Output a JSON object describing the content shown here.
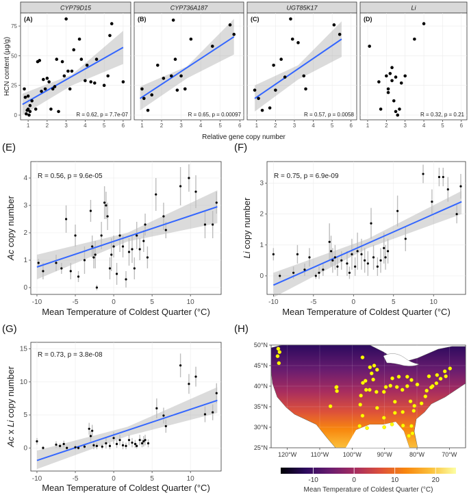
{
  "figure": {
    "top_row": {
      "ylabel": "HCN content (µg/g)",
      "xlabel": "Relative gene copy number"
    },
    "bottom_xlabel": "Mean Temperature of Coldest Quarter (°C)",
    "map_colorbar_label": "Mean Temperature of Coldest Quarter (°C)"
  },
  "chart_data": [
    {
      "id": "A",
      "tag": "(A)",
      "strip": "CYP79D15",
      "type": "scatter",
      "xlabel": "Relative gene copy number",
      "ylabel": "HCN content (µg/g)",
      "xlim": [
        0.6,
        6.4
      ],
      "ylim": [
        -4,
        86
      ],
      "xticks": [
        1,
        2,
        3,
        4,
        5,
        6
      ],
      "yticks": [
        0,
        25,
        50,
        75
      ],
      "x": [
        0.8,
        0.85,
        0.9,
        0.95,
        1.0,
        1.0,
        1.05,
        1.1,
        1.1,
        1.2,
        1.4,
        1.5,
        1.6,
        1.7,
        1.8,
        1.9,
        2.0,
        2.1,
        2.2,
        2.3,
        2.4,
        2.5,
        2.6,
        2.8,
        2.9,
        3.0,
        3.1,
        3.2,
        3.3,
        3.4,
        3.7,
        3.8,
        4.0,
        4.1,
        4.3,
        4.5,
        4.6,
        5.0,
        5.2,
        5.3,
        5.4,
        6.0
      ],
      "y": [
        22,
        15,
        1,
        4,
        16,
        5,
        0,
        3,
        8,
        12,
        5,
        45,
        46,
        20,
        30,
        22,
        31,
        28,
        5,
        22,
        24,
        47,
        3,
        45,
        33,
        81,
        37,
        22,
        37,
        55,
        64,
        47,
        29,
        42,
        28,
        27,
        47,
        25,
        33,
        67,
        77,
        28
      ],
      "fit": {
        "x": [
          0.7,
          6.0
        ],
        "y": [
          9,
          57
        ]
      },
      "band": {
        "x": [
          0.7,
          3.3,
          6.0
        ],
        "lower": [
          0,
          25,
          43
        ],
        "upper": [
          18,
          34,
          71
        ]
      },
      "annotation": "R = 0.62, p = 7.7e-07"
    },
    {
      "id": "B",
      "tag": "(B)",
      "strip": "CYP736A187",
      "type": "scatter",
      "xlim": [
        0.6,
        6.2
      ],
      "ylim": [
        -4,
        86
      ],
      "xticks": [
        1,
        2,
        3,
        4,
        5,
        6
      ],
      "yticks": [
        0,
        25,
        50,
        75
      ],
      "x": [
        1.0,
        1.1,
        1.3,
        1.5,
        1.8,
        2.1,
        2.5,
        2.6,
        2.7,
        2.8,
        3.0,
        3.2,
        3.2,
        3.5,
        4.6,
        5.5,
        5.7
      ],
      "y": [
        22,
        14,
        4,
        17,
        42,
        31,
        33,
        80,
        47,
        21,
        33,
        22,
        22,
        64,
        58,
        76,
        68
      ],
      "fit": {
        "x": [
          0.9,
          5.7
        ],
        "y": [
          14,
          66
        ]
      },
      "band": {
        "x": [
          0.9,
          3.3,
          5.7
        ],
        "lower": [
          4,
          31,
          51
        ],
        "upper": [
          24,
          41,
          81
        ]
      },
      "annotation": "R = 0.65, p = 0.00097"
    },
    {
      "id": "C",
      "tag": "(C)",
      "strip": "UGT85K17",
      "type": "scatter",
      "xlim": [
        0.5,
        6.3
      ],
      "ylim": [
        -4,
        86
      ],
      "xticks": [
        1,
        2,
        3,
        4,
        5,
        6
      ],
      "yticks": [
        0,
        25,
        50,
        75
      ],
      "x": [
        0.9,
        1.1,
        1.3,
        1.7,
        1.9,
        2.0,
        2.3,
        2.5,
        2.8,
        2.9,
        3.2,
        3.5,
        3.6,
        5.1,
        5.4
      ],
      "y": [
        21,
        14,
        4,
        6,
        42,
        21,
        47,
        32,
        81,
        64,
        61,
        33,
        22,
        76,
        68
      ],
      "fit": {
        "x": [
          0.9,
          5.5
        ],
        "y": [
          14,
          64
        ]
      },
      "band": {
        "x": [
          0.9,
          3.2,
          5.5
        ],
        "lower": [
          3,
          30,
          49
        ],
        "upper": [
          25,
          42,
          79
        ]
      },
      "annotation": "R = 0.57, p = 0.0058"
    },
    {
      "id": "D",
      "tag": "(D)",
      "strip": "Li",
      "type": "scatter",
      "xlim": [
        0.6,
        6.3
      ],
      "ylim": [
        -4,
        86
      ],
      "xticks": [
        1,
        2,
        3,
        4,
        5,
        6
      ],
      "yticks": [
        0,
        25,
        50,
        75
      ],
      "x": [
        1.1,
        1.6,
        1.7,
        2.0,
        2.1,
        2.1,
        2.2,
        2.3,
        2.3,
        2.4,
        2.5,
        2.5,
        2.6,
        2.7,
        2.8,
        3.0,
        3.5,
        4.0
      ],
      "y": [
        58,
        28,
        5,
        33,
        22,
        19,
        35,
        40,
        29,
        12,
        32,
        3,
        0,
        5,
        27,
        33,
        64,
        77
      ],
      "annotation": "R = 0.32, p = 0.21"
    },
    {
      "id": "E",
      "tag": "(E)",
      "type": "scatter",
      "ylabel_italic": "Ac",
      "ylabel_rest": " copy number",
      "xlabel": "Mean Temperature of Coldest Quarter (°C)",
      "xlim": [
        -10.8,
        14
      ],
      "ylim": [
        -0.25,
        4.6
      ],
      "xticks": [
        -10,
        -5,
        0,
        5,
        10
      ],
      "yticks": [
        0,
        1,
        2,
        3,
        4
      ],
      "x": [
        -9.8,
        -9.2,
        -7.5,
        -6.8,
        -6.2,
        -5.6,
        -5.0,
        -4.6,
        -3.8,
        -3.0,
        -2.8,
        -2.6,
        -2.4,
        -2.2,
        -1.6,
        -1.2,
        -1.0,
        -0.8,
        -0.5,
        -0.3,
        0.0,
        0.4,
        0.8,
        1.2,
        1.6,
        2.0,
        2.4,
        2.7,
        3.0,
        3.4,
        3.9,
        4.1,
        4.4,
        5.5,
        6.5,
        6.8,
        8.7,
        9.8,
        10.7,
        11.9,
        12.9,
        13.4
      ],
      "y": [
        0.9,
        0.6,
        0.9,
        0.7,
        2.5,
        0.6,
        1.9,
        0.4,
        1.0,
        2.8,
        1.5,
        1.1,
        1.2,
        0.0,
        1.9,
        3.1,
        3.0,
        2.6,
        0.7,
        1.2,
        1.5,
        0.5,
        1.9,
        1.5,
        0.3,
        1.3,
        1.4,
        0.7,
        1.9,
        1.4,
        1.7,
        2.3,
        1.1,
        3.4,
        2.6,
        2.1,
        3.7,
        4.0,
        3.5,
        2.3,
        2.3,
        3.1
      ],
      "err": [
        0.15,
        0.3,
        0.3,
        0.2,
        0.5,
        0.3,
        0.4,
        0.2,
        0.5,
        0.4,
        0.4,
        0.4,
        0.5,
        0.1,
        0.5,
        0.6,
        0.5,
        0.5,
        0.4,
        0.6,
        0.4,
        0.4,
        0.6,
        0.4,
        0.3,
        0.5,
        0.5,
        0.4,
        0.5,
        0.4,
        0.4,
        0.4,
        0.4,
        0.6,
        0.5,
        0.3,
        0.7,
        0.5,
        0.6,
        0.5,
        0.5,
        0.4
      ],
      "fit": {
        "x": [
          -10,
          13.5
        ],
        "y": [
          0.75,
          2.95
        ]
      },
      "band": {
        "x": [
          -10,
          1.8,
          13.5
        ],
        "lower": [
          0.3,
          1.68,
          2.35
        ],
        "upper": [
          1.2,
          2.0,
          3.55
        ]
      },
      "annotation": "R = 0.56, p = 9.6e-05"
    },
    {
      "id": "F",
      "tag": "(F)",
      "type": "scatter",
      "ylabel_italic": "Li",
      "ylabel_rest": " copy number",
      "xlabel": "Mean Temperature of Coldest Quarter (°C)",
      "xlim": [
        -10.8,
        14
      ],
      "ylim": [
        -0.6,
        3.7
      ],
      "xticks": [
        -10,
        -5,
        0,
        5,
        10
      ],
      "yticks": [
        0,
        1,
        2,
        3
      ],
      "x": [
        -10.0,
        -9.2,
        -7.5,
        -7.0,
        -6.1,
        -5.5,
        -4.7,
        -4.3,
        -3.8,
        -3.0,
        -2.8,
        -2.6,
        -2.3,
        -2.0,
        -1.5,
        -0.8,
        -0.5,
        -0.2,
        0.2,
        0.5,
        1.0,
        1.4,
        1.8,
        2.2,
        2.5,
        3.0,
        3.4,
        3.8,
        4.0,
        4.3,
        5.5,
        6.5,
        8.7,
        9.8,
        10.7,
        11.2,
        11.8,
        12.9,
        13.4
      ],
      "y": [
        0.7,
        0.0,
        0.1,
        0.7,
        0.2,
        0.6,
        0.0,
        0.1,
        0.2,
        1.1,
        0.8,
        0.5,
        0.6,
        0.3,
        0.5,
        0.4,
        0.1,
        0.7,
        0.3,
        0.8,
        0.7,
        0.5,
        0.4,
        1.7,
        0.6,
        0.3,
        0.5,
        0.9,
        0.6,
        0.8,
        2.1,
        1.2,
        3.3,
        2.4,
        3.2,
        3.2,
        2.8,
        2.0,
        2.9
      ],
      "err": [
        0.2,
        0.1,
        0.2,
        0.3,
        0.2,
        0.3,
        0.1,
        0.2,
        0.2,
        0.6,
        0.5,
        0.4,
        0.4,
        0.3,
        0.3,
        0.4,
        0.2,
        0.5,
        0.3,
        0.6,
        0.5,
        0.4,
        0.4,
        0.5,
        0.4,
        0.3,
        0.4,
        0.5,
        0.4,
        0.4,
        0.5,
        0.4,
        0.3,
        0.4,
        0.3,
        0.3,
        0.4,
        0.3,
        0.4
      ],
      "fit": {
        "x": [
          -10,
          13.5
        ],
        "y": [
          -0.3,
          2.4
        ]
      },
      "band": {
        "x": [
          -10,
          1.8,
          13.5
        ],
        "lower": [
          -0.7,
          0.9,
          2.0
        ],
        "upper": [
          0.1,
          1.2,
          2.75
        ]
      },
      "annotation": "R = 0.75, p = 6.9e-09"
    },
    {
      "id": "G",
      "tag": "(G)",
      "type": "scatter",
      "ylabel_italic": "Ac",
      "ylabel_mid": " x ",
      "ylabel_italic2": "Li",
      "ylabel_rest": " copy number",
      "xlabel": "Mean Temperature of Coldest Quarter (°C)",
      "xlim": [
        -10.8,
        14
      ],
      "ylim": [
        -3.5,
        16
      ],
      "xticks": [
        -10,
        -5,
        0,
        5,
        10
      ],
      "yticks": [
        0,
        5,
        10,
        15
      ],
      "x": [
        -10.0,
        -9.2,
        -7.5,
        -7.0,
        -6.5,
        -6.1,
        -5.0,
        -4.6,
        -3.8,
        -3.2,
        -3.0,
        -2.8,
        -2.6,
        -2.2,
        -1.5,
        -1.0,
        -0.5,
        0.0,
        0.4,
        0.8,
        1.2,
        1.6,
        2.0,
        2.4,
        2.8,
        3.0,
        3.4,
        3.7,
        3.9,
        4.1,
        4.5,
        5.6,
        6.5,
        6.8,
        8.7,
        9.8,
        10.7,
        11.9,
        12.9,
        13.4
      ],
      "y": [
        1.0,
        0.0,
        0.5,
        0.3,
        0.6,
        0.0,
        0.1,
        0.0,
        0.2,
        2.9,
        1.8,
        2.6,
        0.4,
        0.3,
        0.2,
        0.7,
        0.3,
        1.5,
        0.6,
        1.2,
        0.4,
        0.3,
        1.2,
        0.8,
        0.6,
        0.3,
        1.2,
        0.7,
        1.0,
        1.2,
        0.7,
        6.0,
        4.9,
        3.3,
        12.5,
        9.7,
        10.8,
        5.1,
        5.4,
        8.3
      ],
      "err": [
        0.5,
        0.3,
        0.5,
        0.4,
        0.5,
        0.3,
        0.4,
        0.3,
        0.4,
        0.9,
        0.8,
        0.9,
        0.6,
        0.5,
        0.4,
        0.8,
        0.5,
        0.9,
        0.6,
        0.8,
        0.6,
        0.5,
        0.8,
        0.7,
        0.6,
        0.4,
        0.8,
        0.6,
        0.8,
        0.8,
        0.6,
        1.5,
        1.2,
        1.0,
        1.8,
        1.5,
        1.5,
        1.2,
        1.2,
        1.5
      ],
      "fit": {
        "x": [
          -10,
          13.5
        ],
        "y": [
          -1.9,
          7.2
        ]
      },
      "band": {
        "x": [
          -10,
          1.8,
          13.5
        ],
        "lower": [
          -3.2,
          1.8,
          5.3
        ],
        "upper": [
          -0.4,
          3.2,
          9.2
        ]
      },
      "annotation": "R = 0.73, p = 3.8e-08"
    },
    {
      "id": "H",
      "tag": "(H)",
      "type": "map",
      "lon_range": [
        -125,
        -65
      ],
      "lat_range": [
        25,
        50
      ],
      "xticks": [
        "120°W",
        "110°W",
        "100°W",
        "90°W",
        "80°W",
        "70°W"
      ],
      "xtick_lons": [
        -120,
        -110,
        -100,
        -90,
        -80,
        -70
      ],
      "yticks": [
        "25°N",
        "30°N",
        "35°N",
        "40°N",
        "45°N",
        "50°N"
      ],
      "ytick_lats": [
        25,
        30,
        35,
        40,
        45,
        50
      ],
      "colorbar": {
        "ticks": [
          "-10",
          "0",
          "10",
          "20"
        ],
        "tick_values": [
          -10,
          0,
          10,
          20
        ],
        "range": [
          -18,
          25
        ],
        "colors": [
          "#000004",
          "#2c0a5e",
          "#6b1d6f",
          "#a72d5f",
          "#dd513a",
          "#f8870e",
          "#fbc03b",
          "#fcffa4"
        ],
        "label": "Mean Temperature of Coldest Quarter (°C)"
      },
      "sites": [
        [
          -122.8,
          49.1
        ],
        [
          -122.4,
          48.3
        ],
        [
          -123.0,
          47.3
        ],
        [
          -122.6,
          45.6
        ],
        [
          -106.7,
          35.1
        ],
        [
          -104.9,
          39.7
        ],
        [
          -104.7,
          38.8
        ],
        [
          -104.8,
          39.8
        ],
        [
          -96.8,
          47.0
        ],
        [
          -94.5,
          44.6
        ],
        [
          -94.0,
          43.1
        ],
        [
          -93.2,
          45.0
        ],
        [
          -92.3,
          44.0
        ],
        [
          -93.5,
          41.6
        ],
        [
          -96.7,
          40.8
        ],
        [
          -95.9,
          41.3
        ],
        [
          -97.3,
          37.7
        ],
        [
          -95.7,
          39.1
        ],
        [
          -94.6,
          39.1
        ],
        [
          -92.5,
          38.6
        ],
        [
          -90.2,
          38.6
        ],
        [
          -89.6,
          39.8
        ],
        [
          -88.2,
          40.1
        ],
        [
          -87.6,
          41.9
        ],
        [
          -86.2,
          39.8
        ],
        [
          -85.6,
          42.3
        ],
        [
          -83.0,
          42.3
        ],
        [
          -84.5,
          39.1
        ],
        [
          -83.0,
          40.0
        ],
        [
          -81.7,
          41.5
        ],
        [
          -79.9,
          40.4
        ],
        [
          -77.0,
          38.9
        ],
        [
          -75.2,
          40.0
        ],
        [
          -74.0,
          40.7
        ],
        [
          -73.8,
          42.7
        ],
        [
          -72.7,
          41.8
        ],
        [
          -71.1,
          42.4
        ],
        [
          -71.4,
          43.6
        ],
        [
          -69.8,
          44.3
        ],
        [
          -76.3,
          42.4
        ],
        [
          -78.6,
          35.8
        ],
        [
          -80.8,
          35.2
        ],
        [
          -81.0,
          34.0
        ],
        [
          -84.4,
          33.7
        ],
        [
          -86.8,
          36.2
        ],
        [
          -86.8,
          33.5
        ],
        [
          -90.2,
          32.3
        ],
        [
          -92.3,
          34.7
        ],
        [
          -97.5,
          35.5
        ],
        [
          -97.7,
          30.3
        ],
        [
          -96.8,
          32.8
        ],
        [
          -95.4,
          29.8
        ],
        [
          -90.1,
          30.0
        ],
        [
          -87.7,
          30.7
        ],
        [
          -84.3,
          30.4
        ],
        [
          -81.7,
          30.3
        ],
        [
          -82.5,
          27.9
        ],
        [
          -81.4,
          28.5
        ],
        [
          -77.4,
          37.5
        ],
        [
          -75.6,
          39.7
        ],
        [
          -82.0,
          36.3
        ]
      ]
    }
  ]
}
